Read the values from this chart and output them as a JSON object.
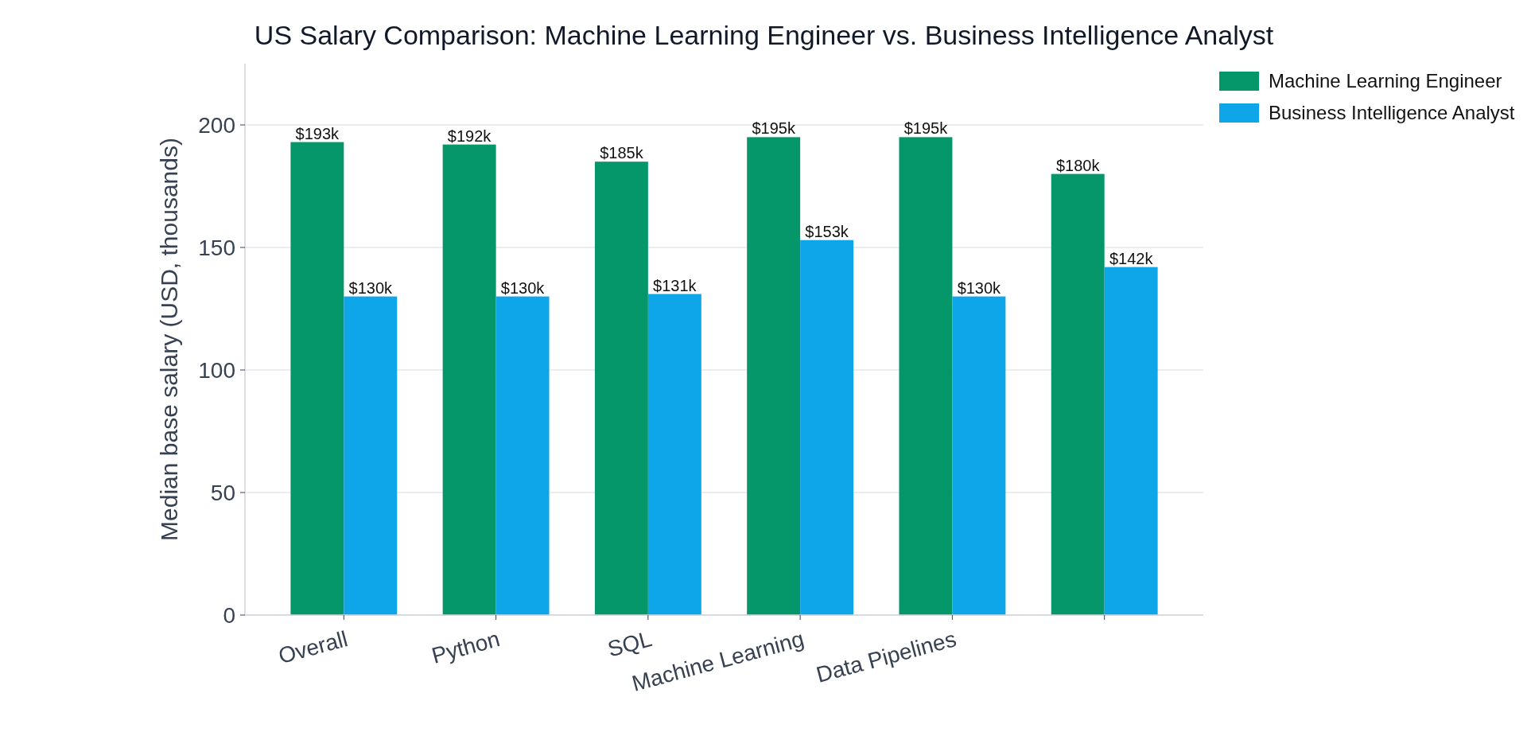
{
  "chart_data": {
    "type": "bar",
    "title": "US Salary Comparison: Machine Learning Engineer vs. Business Intelligence Analyst",
    "ylabel": "Median base salary (USD, thousands)",
    "categories": [
      "Overall",
      "Python",
      "SQL",
      "Machine Learning",
      "Data Pipelines",
      null
    ],
    "series": [
      {
        "name": "Machine Learning Engineer",
        "color": "#059669",
        "values": [
          193,
          192,
          185,
          195,
          195,
          180
        ],
        "value_labels": [
          "$193k",
          "$192k",
          "$185k",
          "$195k",
          "$195k",
          "$180k"
        ]
      },
      {
        "name": "Business Intelligence Analyst",
        "color": "#0ea5e9",
        "values": [
          130,
          130,
          131,
          153,
          130,
          142
        ],
        "value_labels": [
          "$130k",
          "$130k",
          "$131k",
          "$153k",
          "$130k",
          "$142k"
        ]
      }
    ],
    "ylim": [
      0,
      225
    ],
    "yticks": [
      0,
      50,
      100,
      150,
      200
    ],
    "grid": "y",
    "legend": "top right"
  }
}
